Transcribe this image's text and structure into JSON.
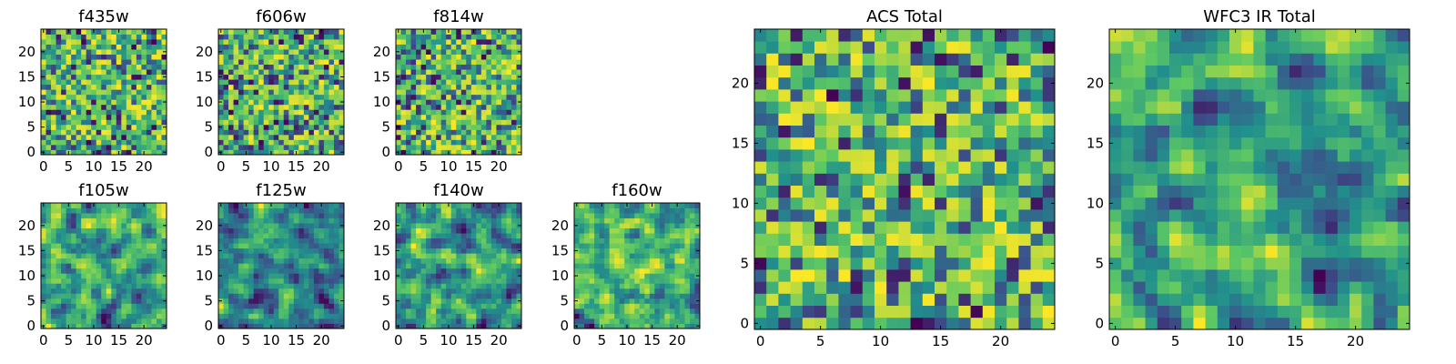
{
  "figure": {
    "background": "#ffffff",
    "colormap": "viridis",
    "colormap_stops": [
      "#440154",
      "#3b528b",
      "#21918c",
      "#5ec962",
      "#fde725"
    ]
  },
  "chart_data": [
    {
      "type": "heatmap",
      "title": "f435w",
      "grid_shape": [
        25,
        25
      ],
      "xticks": [
        "0",
        "5",
        "10",
        "15",
        "20"
      ],
      "yticks": [
        "0",
        "5",
        "10",
        "15",
        "20"
      ],
      "xlim": [
        -0.5,
        24.5
      ],
      "ylim": [
        -0.5,
        24.5
      ],
      "pattern_seed": 11,
      "smooth": 0
    },
    {
      "type": "heatmap",
      "title": "f606w",
      "grid_shape": [
        25,
        25
      ],
      "xticks": [
        "0",
        "5",
        "10",
        "15",
        "20"
      ],
      "yticks": [
        "0",
        "5",
        "10",
        "15",
        "20"
      ],
      "xlim": [
        -0.5,
        24.5
      ],
      "ylim": [
        -0.5,
        24.5
      ],
      "pattern_seed": 23,
      "smooth": 0
    },
    {
      "type": "heatmap",
      "title": "f814w",
      "grid_shape": [
        25,
        25
      ],
      "xticks": [
        "0",
        "5",
        "10",
        "15",
        "20"
      ],
      "yticks": [
        "0",
        "5",
        "10",
        "15",
        "20"
      ],
      "xlim": [
        -0.5,
        24.5
      ],
      "ylim": [
        -0.5,
        24.5
      ],
      "pattern_seed": 37,
      "smooth": 0
    },
    {
      "type": "heatmap",
      "title": "f105w",
      "grid_shape": [
        25,
        25
      ],
      "xticks": [
        "0",
        "5",
        "10",
        "15",
        "20"
      ],
      "yticks": [
        "0",
        "5",
        "10",
        "15",
        "20"
      ],
      "xlim": [
        -0.5,
        24.5
      ],
      "ylim": [
        -0.5,
        24.5
      ],
      "pattern_seed": 41,
      "smooth": 1
    },
    {
      "type": "heatmap",
      "title": "f125w",
      "grid_shape": [
        25,
        25
      ],
      "xticks": [
        "0",
        "5",
        "10",
        "15",
        "20"
      ],
      "yticks": [
        "0",
        "5",
        "10",
        "15",
        "20"
      ],
      "xlim": [
        -0.5,
        24.5
      ],
      "ylim": [
        -0.5,
        24.5
      ],
      "pattern_seed": 53,
      "smooth": 1
    },
    {
      "type": "heatmap",
      "title": "f140w",
      "grid_shape": [
        25,
        25
      ],
      "xticks": [
        "0",
        "5",
        "10",
        "15",
        "20"
      ],
      "yticks": [
        "0",
        "5",
        "10",
        "15",
        "20"
      ],
      "xlim": [
        -0.5,
        24.5
      ],
      "ylim": [
        -0.5,
        24.5
      ],
      "pattern_seed": 67,
      "smooth": 1
    },
    {
      "type": "heatmap",
      "title": "f160w",
      "grid_shape": [
        25,
        25
      ],
      "xticks": [
        "0",
        "5",
        "10",
        "15",
        "20"
      ],
      "yticks": [
        "0",
        "5",
        "10",
        "15",
        "20"
      ],
      "xlim": [
        -0.5,
        24.5
      ],
      "ylim": [
        -0.5,
        24.5
      ],
      "pattern_seed": 79,
      "smooth": 1
    },
    {
      "type": "heatmap",
      "title": "ACS Total",
      "grid_shape": [
        25,
        25
      ],
      "xticks": [
        "0",
        "5",
        "10",
        "15",
        "20"
      ],
      "yticks": [
        "0",
        "5",
        "10",
        "15",
        "20"
      ],
      "xlim": [
        -0.5,
        24.5
      ],
      "ylim": [
        -0.5,
        24.5
      ],
      "pattern_seed": 97,
      "smooth": 0
    },
    {
      "type": "heatmap",
      "title": "WFC3 IR Total",
      "grid_shape": [
        25,
        25
      ],
      "xticks": [
        "0",
        "5",
        "10",
        "15",
        "20"
      ],
      "yticks": [
        "0",
        "5",
        "10",
        "15",
        "20"
      ],
      "xlim": [
        -0.5,
        24.5
      ],
      "ylim": [
        -0.5,
        24.5
      ],
      "pattern_seed": 131,
      "smooth": 1
    }
  ]
}
